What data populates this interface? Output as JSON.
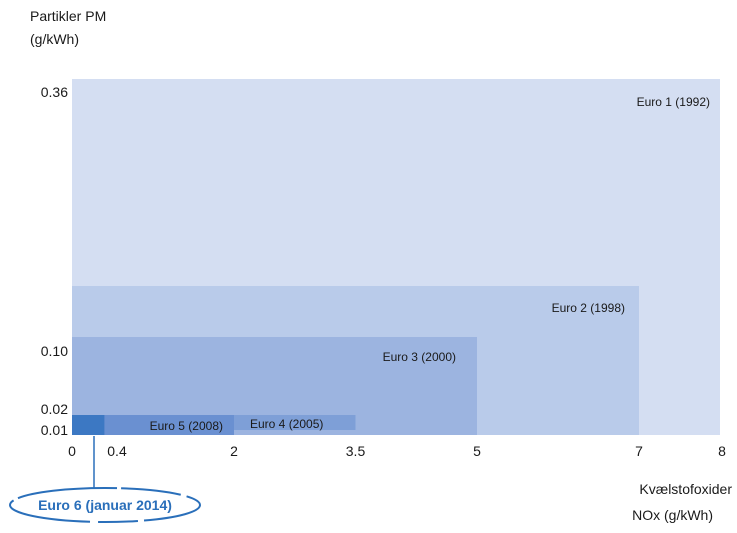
{
  "chart_data": {
    "type": "area",
    "title": "",
    "ylabel_lines": [
      "Partikler PM",
      "(g/kWh)"
    ],
    "xlabel_lines": [
      "Kvælstofoxider",
      "NOx (g/kWh)"
    ],
    "x_ticks": [
      {
        "value": 0,
        "label": "0"
      },
      {
        "value": 0.4,
        "label": "0.4"
      },
      {
        "value": 2,
        "label": "2"
      },
      {
        "value": 3.5,
        "label": "3.5"
      },
      {
        "value": 5,
        "label": "5"
      },
      {
        "value": 7,
        "label": "7"
      },
      {
        "value": 8,
        "label": "8"
      }
    ],
    "y_ticks": [
      {
        "value": 0.01,
        "label": "0.01"
      },
      {
        "value": 0.02,
        "label": "0.02"
      },
      {
        "value": 0.1,
        "label": "0.10"
      },
      {
        "value": 0.36,
        "label": "0.36"
      }
    ],
    "xlim": [
      0,
      8
    ],
    "grid": false,
    "series": [
      {
        "name": "Euro 1 (1992)",
        "nox": 8,
        "pm": 0.36,
        "color": "#d4def2"
      },
      {
        "name": "Euro 2 (1998)",
        "nox": 7,
        "pm": 0.15,
        "color": "#b9cbea"
      },
      {
        "name": "Euro 3 (2000)",
        "nox": 5,
        "pm": 0.1,
        "color": "#9cb4e0"
      },
      {
        "name": "Euro 4 (2005)",
        "nox": 3.5,
        "pm": 0.02,
        "color": "#7e9fd7"
      },
      {
        "name": "Euro 5 (2008)",
        "nox": 2,
        "pm": 0.02,
        "color": "#6a90d1"
      },
      {
        "name": "Euro 6 (januar 2014)",
        "nox": 0.4,
        "pm": 0.01,
        "color": "#3c78c3"
      }
    ],
    "annotation": {
      "label": "Euro 6 (januar 2014)",
      "color": "#2a6fba"
    }
  }
}
